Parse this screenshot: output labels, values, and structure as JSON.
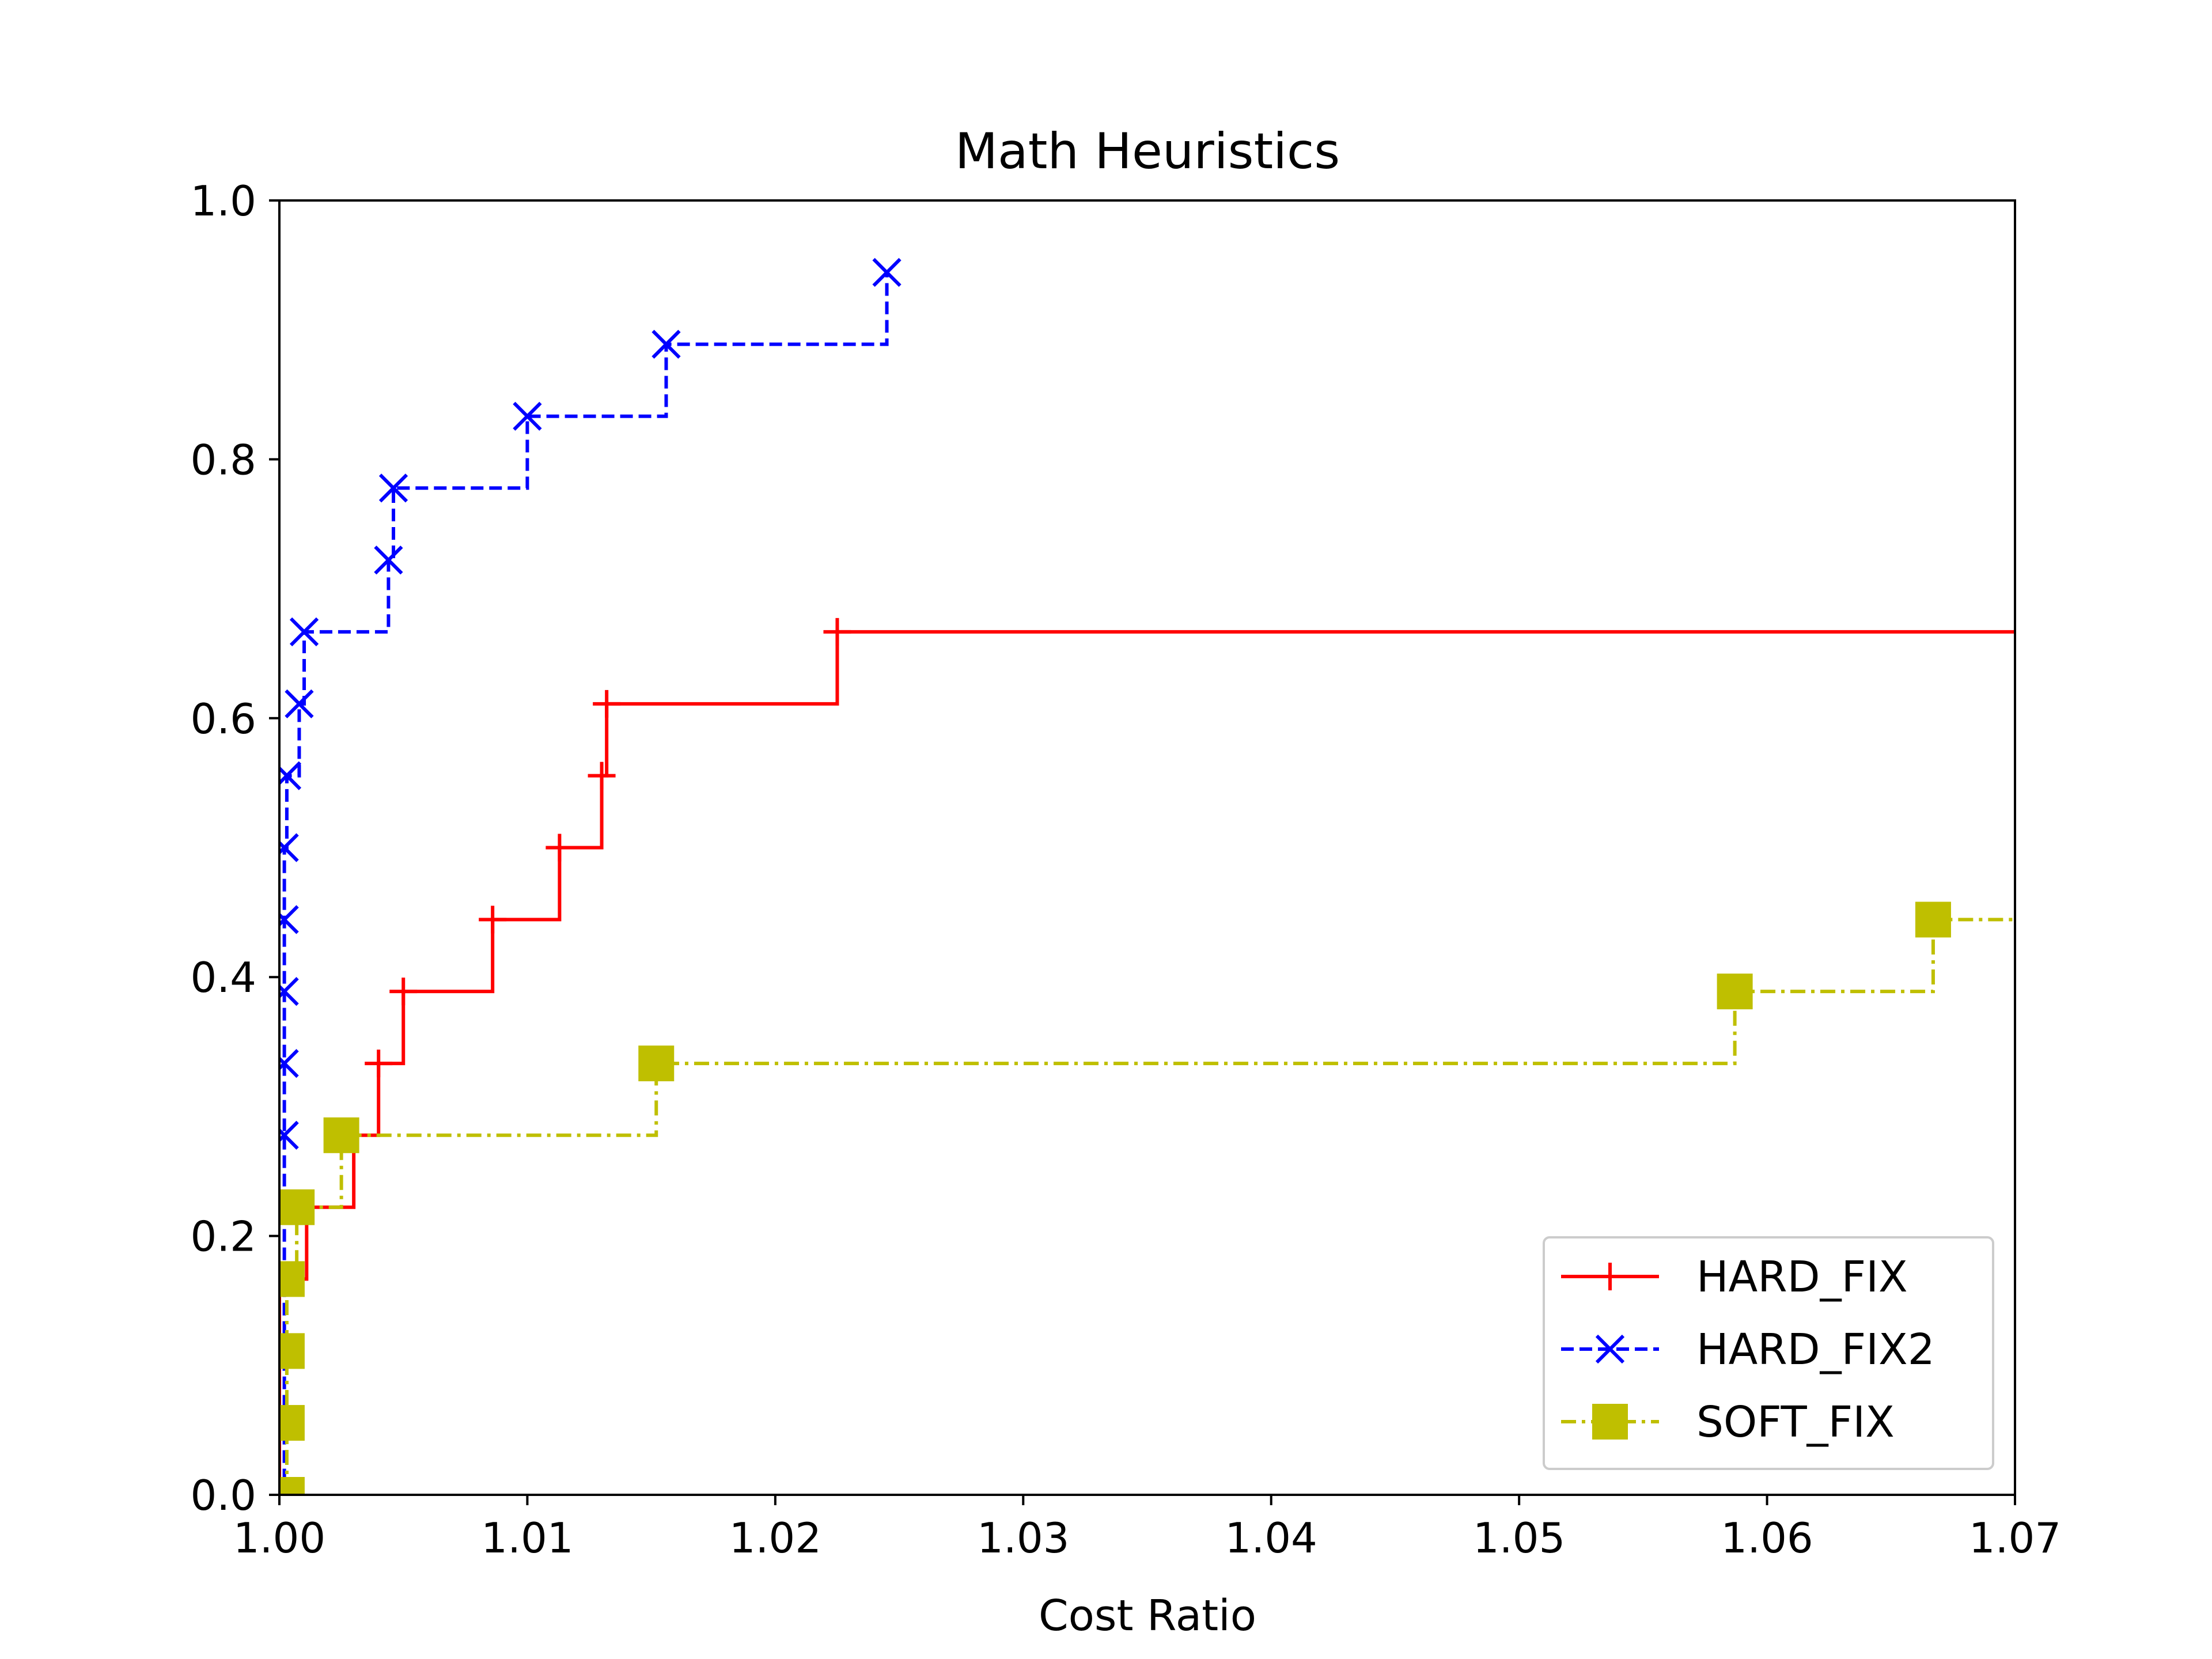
{
  "chart_data": {
    "type": "line",
    "title": "Math Heuristics",
    "xlabel": "Cost Ratio",
    "ylabel": "",
    "xlim": [
      1.0,
      1.07
    ],
    "ylim": [
      0.0,
      1.0
    ],
    "x_ticks": [
      1.0,
      1.01,
      1.02,
      1.03,
      1.04,
      1.05,
      1.06,
      1.07
    ],
    "x_tick_labels": [
      "1.00",
      "1.01",
      "1.02",
      "1.03",
      "1.04",
      "1.05",
      "1.06",
      "1.07"
    ],
    "y_ticks": [
      0.0,
      0.2,
      0.4,
      0.6,
      0.8,
      1.0
    ],
    "y_tick_labels": [
      "0.0",
      "0.2",
      "0.4",
      "0.6",
      "0.8",
      "1.0"
    ],
    "grid": false,
    "legend_position": "lower-right",
    "step": "post",
    "series": [
      {
        "name": "HARD_FIX",
        "color": "#ff0000",
        "line_style": "solid",
        "marker": "plus",
        "x": [
          1.0,
          1.0,
          1.0,
          1.0,
          1.0,
          1.0001,
          1.0002,
          1.0003,
          1.0004,
          1.0005,
          1.0006,
          1.0007,
          1.0008,
          1.0009,
          1.0011,
          1.003,
          1.004,
          1.005,
          1.0086,
          1.0113,
          1.013,
          1.0132,
          1.0225,
          1.07
        ],
        "y": [
          0.0,
          0.0556,
          0.1111,
          0.1111,
          0.1667,
          0.1667,
          0.1667,
          0.1667,
          0.1667,
          0.1667,
          0.1667,
          0.1667,
          0.1667,
          0.1667,
          0.2222,
          0.2778,
          0.3333,
          0.3889,
          0.4444,
          0.5,
          0.5556,
          0.6111,
          0.6667,
          0.6667
        ],
        "markers": [
          [
            1.004,
            0.3333
          ],
          [
            1.005,
            0.3889
          ],
          [
            1.0086,
            0.4444
          ],
          [
            1.0113,
            0.5
          ],
          [
            1.013,
            0.5556
          ],
          [
            1.0132,
            0.6111
          ],
          [
            1.0225,
            0.6667
          ]
        ]
      },
      {
        "name": "HARD_FIX2",
        "color": "#0000ff",
        "line_style": "dashed",
        "marker": "x",
        "x": [
          1.0,
          1.0002,
          1.0002,
          1.0002,
          1.0002,
          1.0002,
          1.0003,
          1.0005,
          1.0008,
          1.001,
          1.0044,
          1.0046,
          1.01,
          1.0156,
          1.0245
        ],
        "y": [
          0.0,
          0.2778,
          0.3333,
          0.3889,
          0.4444,
          0.5,
          0.5556,
          0.5556,
          0.6111,
          0.6667,
          0.7222,
          0.7778,
          0.8333,
          0.8889,
          0.9444
        ],
        "markers": [
          [
            1.0002,
            0.2778
          ],
          [
            1.0002,
            0.3333
          ],
          [
            1.0002,
            0.3889
          ],
          [
            1.0002,
            0.4444
          ],
          [
            1.0002,
            0.5
          ],
          [
            1.0003,
            0.5556
          ],
          [
            1.0008,
            0.6111
          ],
          [
            1.001,
            0.6667
          ],
          [
            1.0044,
            0.7222
          ],
          [
            1.0046,
            0.7778
          ],
          [
            1.01,
            0.8333
          ],
          [
            1.0156,
            0.8889
          ],
          [
            1.0245,
            0.9444
          ]
        ]
      },
      {
        "name": "SOFT_FIX",
        "color": "#bfbf00",
        "line_style": "dashdot",
        "marker": "square",
        "x": [
          1.0003,
          1.0003,
          1.0003,
          1.0003,
          1.0007,
          1.0025,
          1.0152,
          1.0587,
          1.0667,
          1.07
        ],
        "y": [
          0.0,
          0.0556,
          0.1111,
          0.1667,
          0.2222,
          0.2778,
          0.3333,
          0.3889,
          0.4444,
          0.4444
        ],
        "markers": [
          [
            1.0003,
            0.0
          ],
          [
            1.0003,
            0.0556
          ],
          [
            1.0003,
            0.1111
          ],
          [
            1.0003,
            0.1667
          ],
          [
            1.0007,
            0.2222
          ],
          [
            1.0025,
            0.2778
          ],
          [
            1.0152,
            0.3333
          ],
          [
            1.0587,
            0.3889
          ],
          [
            1.0667,
            0.4444
          ]
        ]
      }
    ]
  }
}
